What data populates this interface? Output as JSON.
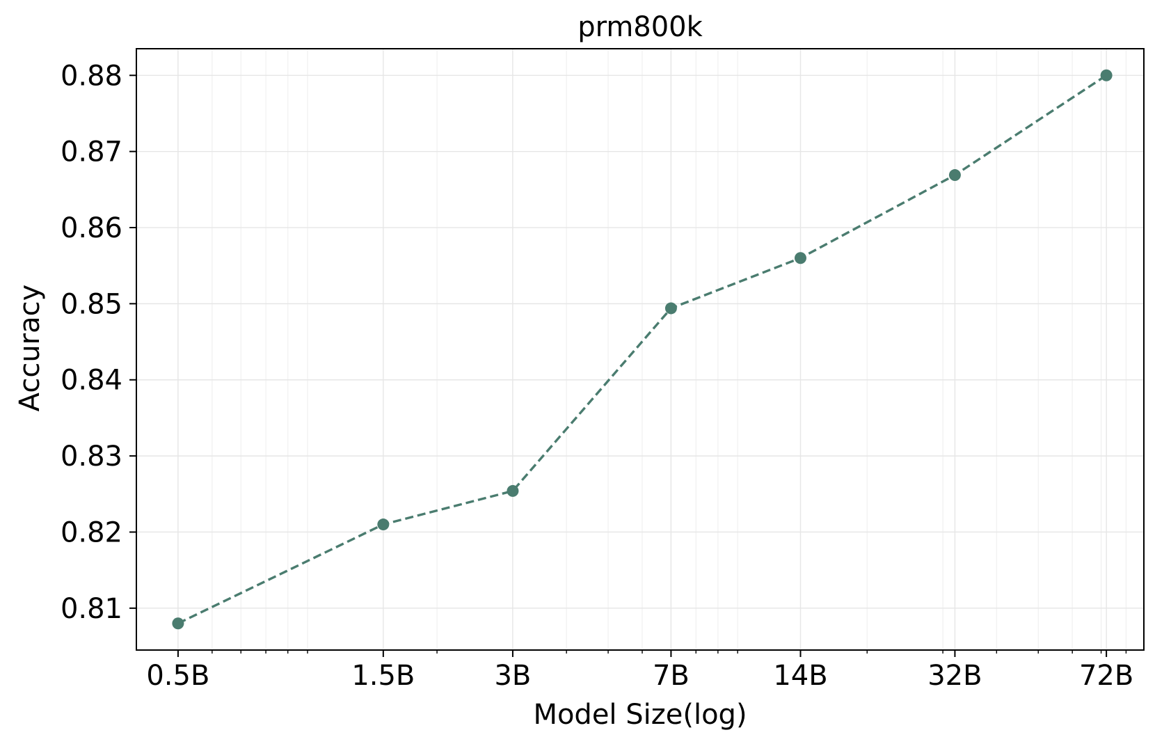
{
  "chart_data": {
    "type": "line",
    "title": "prm800k",
    "xlabel": "Model Size(log)",
    "ylabel": "Accuracy",
    "x_scale": "log",
    "x": [
      0.5,
      1.5,
      3,
      7,
      14,
      32,
      72
    ],
    "x_tick_labels": [
      "0.5B",
      "1.5B",
      "3B",
      "7B",
      "14B",
      "32B",
      "72B"
    ],
    "y_ticks": [
      0.81,
      0.82,
      0.83,
      0.84,
      0.85,
      0.86,
      0.87,
      0.88
    ],
    "y_tick_labels": [
      "0.81",
      "0.82",
      "0.83",
      "0.84",
      "0.85",
      "0.86",
      "0.87",
      "0.88"
    ],
    "xlim": [
      0.4,
      88
    ],
    "ylim": [
      0.8045,
      0.8835
    ],
    "grid": true,
    "series": [
      {
        "values": [
          0.808,
          0.821,
          0.8254,
          0.8494,
          0.856,
          0.8669,
          0.88
        ],
        "color": "#4a7c6f",
        "line_style": "dashed",
        "marker": "circle"
      }
    ]
  }
}
